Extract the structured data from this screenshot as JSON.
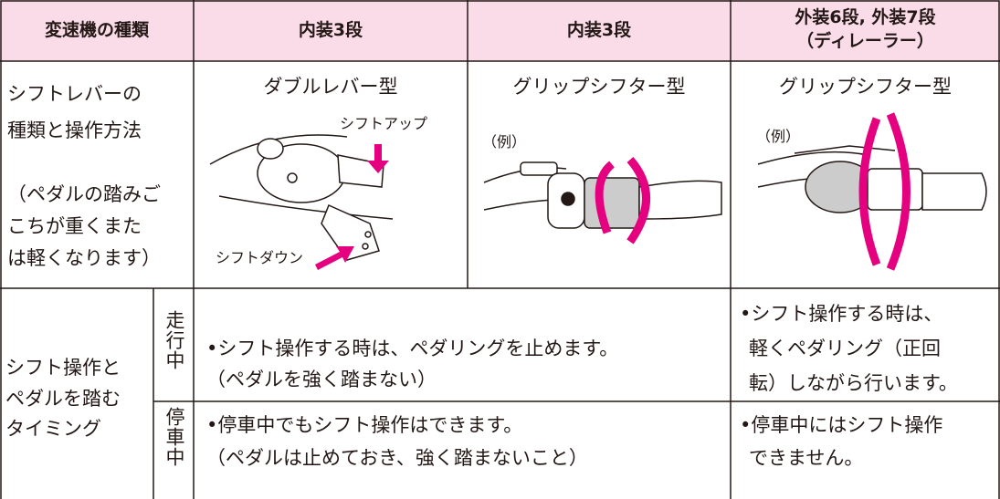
{
  "header": {
    "col1": "変速機の種類",
    "col2": "内装3段",
    "col3": "内装3段",
    "col4": [
      "外装6段, 外装7段",
      "（ディレーラー）"
    ]
  },
  "lever_row": {
    "label": [
      "シフトレバーの",
      "種類と操作方法",
      "（ペダルの踏みご",
      "こちが重くまた",
      "は軽くなります）"
    ],
    "col2": {
      "title": "ダブルレバー型",
      "callouts": [
        "シフトアップ",
        "シフトダウン"
      ]
    },
    "col3": {
      "title": "グリップシフター型",
      "note": "（例）"
    },
    "col4": {
      "title": "グリップシフター型",
      "note": "（例）"
    }
  },
  "timing_rows": {
    "label": [
      "シフト操作と",
      "ペダルを踏む",
      "タイミング"
    ],
    "riding": {
      "label": "走行中",
      "internal": [
        "•シフト操作する時は、ペダリングを止めます。",
        "（ペダルを強く踏まない）"
      ],
      "external": [
        "•シフト操作する時は、",
        "軽くペダリング（正回",
        "転）しながら行います。"
      ]
    },
    "stopped": {
      "label": "停車中",
      "internal": [
        "•停車中でもシフト操作はできます。",
        "（ペダルは止めておき、強く踏まないこと）"
      ],
      "external": [
        "•停車中にはシフト操作",
        "できません。"
      ]
    }
  }
}
